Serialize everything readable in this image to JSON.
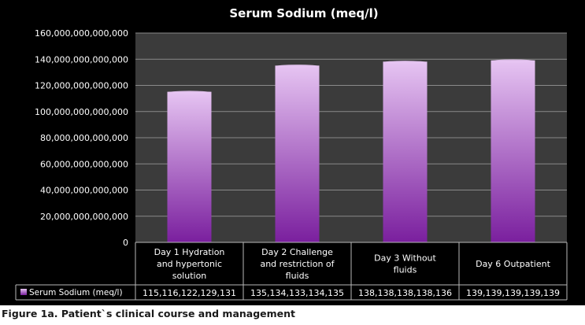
{
  "chart_data": {
    "type": "bar",
    "title": "Serum Sodium (meq/l)",
    "xlabel": "",
    "ylabel": "",
    "categories": [
      "Day  1 Hydration and hypertonic solution",
      "Day 2 Challenge and restriction of fluids",
      "Day 3 Without fluids",
      "Day 6 Outpatient"
    ],
    "category_lines": [
      [
        "Day  1 Hydration",
        "and hypertonic",
        "solution"
      ],
      [
        "Day 2 Challenge",
        "and restriction of",
        "fluids"
      ],
      [
        "Day 3 Without",
        "fluids"
      ],
      [
        "Day 6 Outpatient"
      ]
    ],
    "series": [
      {
        "name": "Serum Sodium (meq/l)",
        "values": [
          115116122129131,
          135134133134135,
          138138138138136,
          139139139139139
        ],
        "table_values": [
          "115,116,122,129,131",
          "135,134,133,134,135",
          "138,138,138,138,136",
          "139,139,139,139,139"
        ]
      }
    ],
    "ylim": [
      0,
      160000000000000
    ],
    "ytick_step": 20000000000000,
    "ytick_labels": [
      "0",
      "20,000,000,000,000",
      "40,000,000,000,000",
      "60,000,000,000,000",
      "80,000,000,000,000",
      "100,000,000,000,000",
      "120,000,000,000,000",
      "140,000,000,000,000",
      "160,000,000,000,000"
    ],
    "grid": true,
    "legend": "data-table",
    "colors": {
      "background": "#000000",
      "plot_area": "#3b3b3b",
      "gridline": "#8a8a8a",
      "bar_top": "#e6c4f2",
      "bar_bottom": "#7a1f9e",
      "text": "#ffffff",
      "table_border": "#b8b8b8"
    }
  },
  "caption": "Figure 1a. Patient`s clinical course and management"
}
